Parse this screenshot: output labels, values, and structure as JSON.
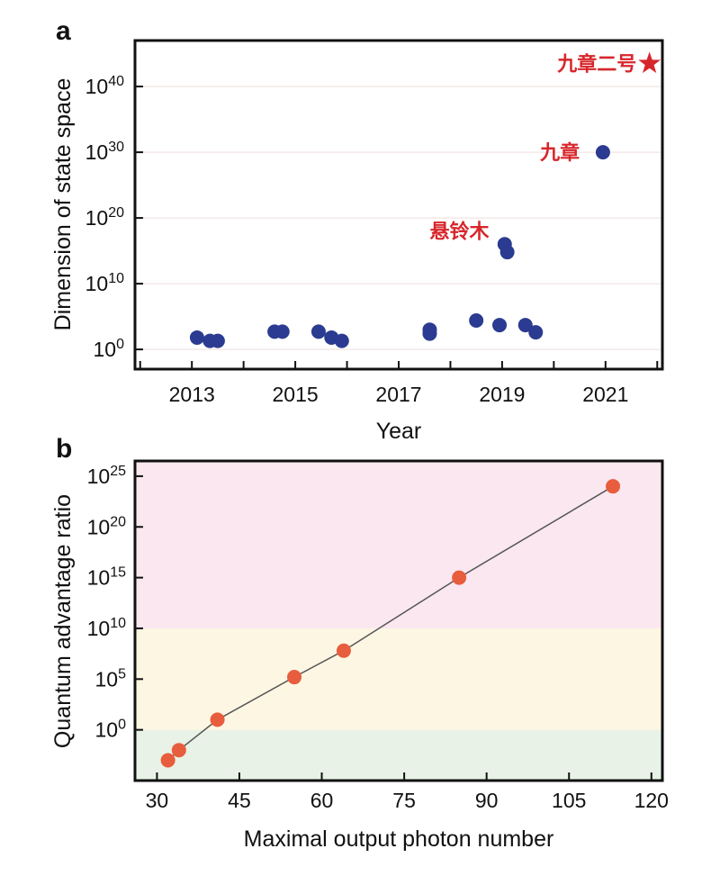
{
  "chart_data": [
    {
      "panel": "a",
      "type": "scatter",
      "xlabel": "Year",
      "ylabel": "Dimension of state space",
      "y_scale": "log",
      "x_ticks": [
        "2013",
        "2015",
        "2017",
        "2019",
        "2021"
      ],
      "y_ticks": [
        {
          "base": "10",
          "exp": "0"
        },
        {
          "base": "10",
          "exp": "10"
        },
        {
          "base": "10",
          "exp": "20"
        },
        {
          "base": "10",
          "exp": "30"
        },
        {
          "base": "10",
          "exp": "40"
        }
      ],
      "xlim": [
        2011.9,
        2022.1
      ],
      "ylim_exp": [
        -3,
        47
      ],
      "grid": "horizontal",
      "marker_color": "#2b3b91",
      "points": [
        {
          "x": 2013.1,
          "exp": 1.8
        },
        {
          "x": 2013.35,
          "exp": 1.3
        },
        {
          "x": 2013.5,
          "exp": 1.3
        },
        {
          "x": 2014.6,
          "exp": 2.7
        },
        {
          "x": 2014.75,
          "exp": 2.7
        },
        {
          "x": 2015.45,
          "exp": 2.7
        },
        {
          "x": 2015.7,
          "exp": 1.8
        },
        {
          "x": 2015.9,
          "exp": 1.3
        },
        {
          "x": 2017.6,
          "exp": 3.0
        },
        {
          "x": 2017.6,
          "exp": 2.4
        },
        {
          "x": 2018.5,
          "exp": 4.4
        },
        {
          "x": 2018.95,
          "exp": 3.7
        },
        {
          "x": 2019.05,
          "exp": 16.0
        },
        {
          "x": 2019.1,
          "exp": 14.8
        },
        {
          "x": 2019.45,
          "exp": 3.7
        },
        {
          "x": 2019.65,
          "exp": 2.6
        },
        {
          "x": 2020.95,
          "exp": 30.0
        }
      ],
      "highlight": {
        "x": 2021.85,
        "exp": 43.5,
        "marker": "star",
        "color": "#d7262b"
      },
      "annotations": [
        {
          "text": "九章二号",
          "x": 2021.6,
          "exp": 43.5
        },
        {
          "text": "九章",
          "x": 2020.5,
          "exp": 30.0
        },
        {
          "text": "悬铃木",
          "x": 2018.75,
          "exp": 18.0
        }
      ]
    },
    {
      "panel": "b",
      "type": "line",
      "xlabel": "Maximal output photon number",
      "ylabel": "Quantum advantage ratio",
      "y_scale": "log",
      "x_ticks": [
        "30",
        "45",
        "60",
        "75",
        "90",
        "105",
        "120"
      ],
      "y_ticks": [
        {
          "base": "10",
          "exp": "0"
        },
        {
          "base": "10",
          "exp": "5"
        },
        {
          "base": "10",
          "exp": "10"
        },
        {
          "base": "10",
          "exp": "15"
        },
        {
          "base": "10",
          "exp": "20"
        },
        {
          "base": "10",
          "exp": "25"
        }
      ],
      "xlim": [
        26,
        122
      ],
      "ylim_exp": [
        -5,
        26.5
      ],
      "bands": [
        {
          "from_exp": -5,
          "to_exp": 0,
          "color": "#e8f2e6"
        },
        {
          "from_exp": 0,
          "to_exp": 10,
          "color": "#fcf6e3"
        },
        {
          "from_exp": 10,
          "to_exp": 26.5,
          "color": "#fbe7ef"
        }
      ],
      "line_color": "#555555",
      "marker_color": "#e85d3d",
      "points": [
        {
          "x": 32,
          "exp": -3.0
        },
        {
          "x": 34,
          "exp": -2.0
        },
        {
          "x": 41,
          "exp": 1.0
        },
        {
          "x": 55,
          "exp": 5.2
        },
        {
          "x": 64,
          "exp": 7.8
        },
        {
          "x": 85,
          "exp": 15.0
        },
        {
          "x": 113,
          "exp": 24.0
        }
      ]
    }
  ]
}
